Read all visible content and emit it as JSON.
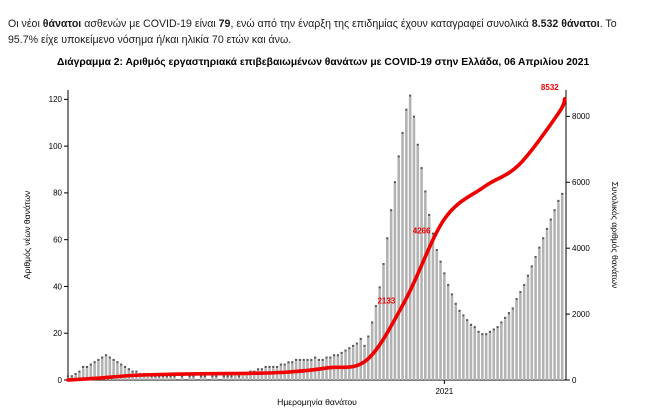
{
  "intro": {
    "segments": [
      {
        "text": "Οι νέοι ",
        "bold": false
      },
      {
        "text": "θάνατοι",
        "bold": true
      },
      {
        "text": " ασθενών με COVID-19 είναι ",
        "bold": false
      },
      {
        "text": "79",
        "bold": true
      },
      {
        "text": ", ενώ από την έναρξη της επιδημίας έχουν καταγραφεί συνολικά ",
        "bold": false
      },
      {
        "text": "8.532 θάνατοι",
        "bold": true
      },
      {
        "text": ". Το 95.7% είχε υποκείμενο νόσημα ή/και ηλικία 70 ετών και άνω.",
        "bold": false
      }
    ]
  },
  "chart_data": {
    "type": "bar+line",
    "title": "Διάγραμμα 2: Αριθμός εργαστηριακά επιβεβαιωμένων θανάτων με COVID-19 στην Ελλάδα, 06 Απριλίου 2021",
    "xlabel": "Ημερομηνία θανάτου",
    "ylabel_left": "Αριθμός νέων θανάτων",
    "ylabel_right": "Συνολικός αριθμός θανάτων",
    "x_start_date": "2020-03-10",
    "x_total_days": 393,
    "sample_interval_days": 3,
    "x_tick": {
      "label": "2021",
      "day": 297
    },
    "left_axis": {
      "min": 0,
      "max": 124,
      "ticks": [
        0,
        20,
        40,
        60,
        80,
        100,
        120
      ]
    },
    "right_axis": {
      "min": 0,
      "max": 8800,
      "ticks": [
        0,
        2000,
        4000,
        6000,
        8000
      ]
    },
    "grid": false,
    "series": [
      {
        "name": "daily_new_deaths",
        "axis": "left",
        "style": "bar"
      },
      {
        "name": "cumulative_deaths",
        "axis": "right",
        "style": "line"
      }
    ],
    "daily_new_deaths": [
      1,
      1,
      2,
      3,
      5,
      5,
      6,
      7,
      8,
      9,
      10,
      9,
      8,
      7,
      6,
      5,
      4,
      3,
      3,
      2,
      2,
      2,
      1,
      1,
      1,
      1,
      1,
      1,
      1,
      0,
      1,
      0,
      1,
      1,
      0,
      1,
      1,
      0,
      1,
      1,
      0,
      1,
      1,
      1,
      2,
      1,
      2,
      2,
      3,
      3,
      4,
      4,
      5,
      5,
      5,
      5,
      6,
      6,
      7,
      7,
      8,
      8,
      8,
      8,
      8,
      9,
      8,
      8,
      9,
      9,
      10,
      10,
      11,
      12,
      13,
      14,
      15,
      17,
      14,
      18,
      24,
      31,
      39,
      49,
      60,
      72,
      84,
      95,
      105,
      115,
      121,
      112,
      100,
      90,
      80,
      70,
      62,
      55,
      50,
      45,
      40,
      36,
      32,
      29,
      27,
      25,
      23,
      22,
      20,
      19,
      19,
      20,
      21,
      22,
      24,
      26,
      28,
      30,
      34,
      37,
      40,
      44,
      48,
      52,
      56,
      60,
      64,
      68,
      72,
      76,
      79
    ],
    "cumulative_anchors": [
      {
        "day": 0,
        "value": 0
      },
      {
        "day": 22,
        "value": 50
      },
      {
        "day": 52,
        "value": 140
      },
      {
        "day": 83,
        "value": 175
      },
      {
        "day": 113,
        "value": 192
      },
      {
        "day": 144,
        "value": 203
      },
      {
        "day": 175,
        "value": 243
      },
      {
        "day": 205,
        "value": 369
      },
      {
        "day": 236,
        "value": 615
      },
      {
        "day": 266,
        "value": 2406
      },
      {
        "day": 297,
        "value": 4881
      },
      {
        "day": 328,
        "value": 5851
      },
      {
        "day": 356,
        "value": 6534
      },
      {
        "day": 387,
        "value": 8093
      },
      {
        "day": 392,
        "value": 8532
      }
    ],
    "annotations": [
      {
        "label": "2133",
        "value": 2133
      },
      {
        "label": "4266",
        "value": 4266
      },
      {
        "label": "8532",
        "value": 8532,
        "final": true
      }
    ],
    "colors": {
      "bar": "#b3b3b3",
      "bar_dot": "#595959",
      "line": "#ee0000",
      "annotation": "#ee0000",
      "axis": "#000000"
    }
  }
}
